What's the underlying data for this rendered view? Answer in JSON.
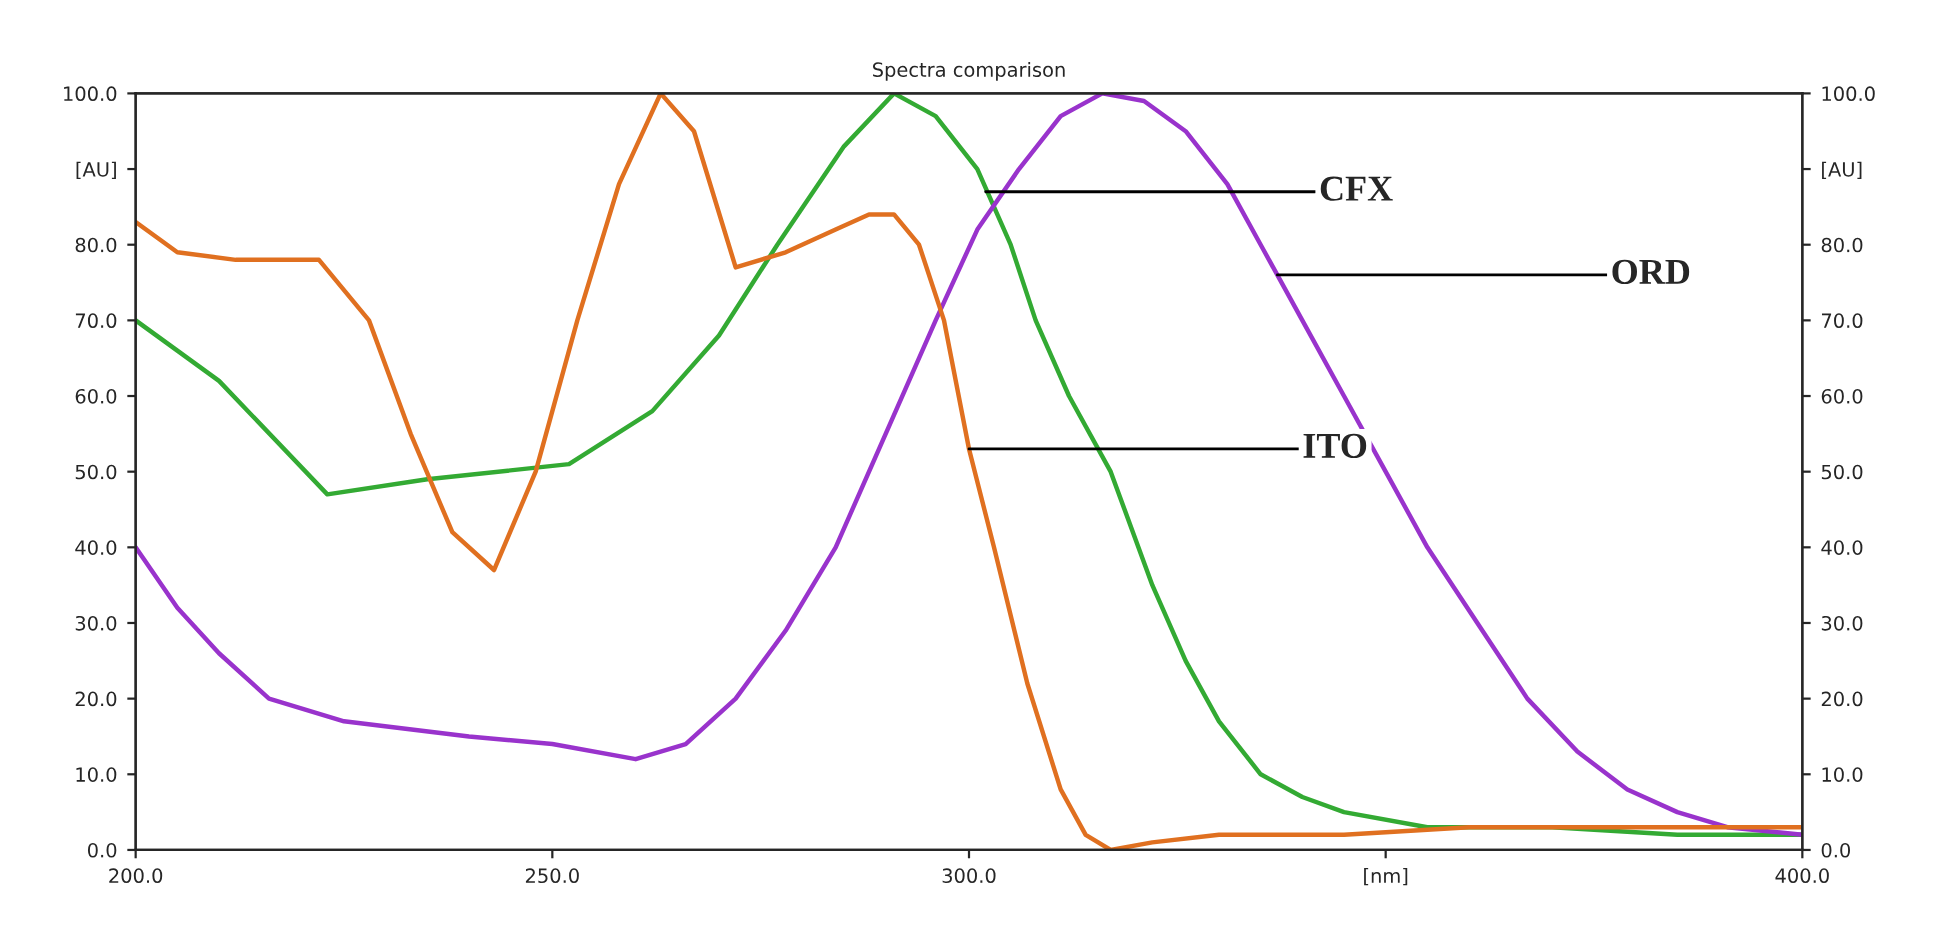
{
  "chart_data": {
    "type": "line",
    "title": "Spectra comparison",
    "xlim": [
      200,
      400
    ],
    "ylim": [
      0,
      100
    ],
    "y2lim": [
      0,
      100
    ],
    "xticks": [
      {
        "value": 200,
        "label": "200.0"
      },
      {
        "value": 250,
        "label": "250.0"
      },
      {
        "value": 300,
        "label": "300.0"
      },
      {
        "value": 350,
        "label": "[nm]"
      },
      {
        "value": 400,
        "label": "400.0"
      }
    ],
    "yticks": [
      {
        "value": 0,
        "label": "0.0"
      },
      {
        "value": 10,
        "label": "10.0"
      },
      {
        "value": 20,
        "label": "20.0"
      },
      {
        "value": 30,
        "label": "30.0"
      },
      {
        "value": 40,
        "label": "40.0"
      },
      {
        "value": 50,
        "label": "50.0"
      },
      {
        "value": 60,
        "label": "60.0"
      },
      {
        "value": 70,
        "label": "70.0"
      },
      {
        "value": 80,
        "label": "80.0"
      },
      {
        "value": 90,
        "label": "[AU]"
      },
      {
        "value": 100,
        "label": "100.0"
      }
    ],
    "y2ticks": [
      {
        "value": 0,
        "label": "0.0"
      },
      {
        "value": 10,
        "label": "10.0"
      },
      {
        "value": 20,
        "label": "20.0"
      },
      {
        "value": 30,
        "label": "30.0"
      },
      {
        "value": 40,
        "label": "40.0"
      },
      {
        "value": 50,
        "label": "50.0"
      },
      {
        "value": 60,
        "label": "60.0"
      },
      {
        "value": 70,
        "label": "70.0"
      },
      {
        "value": 80,
        "label": "80.0"
      },
      {
        "value": 90,
        "label": "[AU]"
      },
      {
        "value": 100,
        "label": "100.0"
      }
    ],
    "grid": false,
    "legend": false,
    "marker": "none",
    "line_style": "solid",
    "series": [
      {
        "color": "#33aa33",
        "x": [
          200,
          210,
          223,
          235,
          252,
          262,
          270,
          277,
          285,
          291,
          296,
          301,
          305,
          308,
          312,
          317,
          322,
          326,
          330,
          335,
          340,
          345,
          355,
          370,
          385,
          400
        ],
        "values": [
          70,
          62,
          47,
          49,
          51,
          58,
          68,
          80,
          93,
          100,
          97,
          90,
          80,
          70,
          60,
          50,
          35,
          25,
          17,
          10,
          7,
          5,
          3,
          3,
          2,
          2
        ]
      },
      {
        "color": "#9933cc",
        "x": [
          200,
          205,
          210,
          216,
          225,
          240,
          250,
          260,
          266,
          272,
          278,
          284,
          290,
          296,
          301,
          306,
          311,
          316,
          321,
          326,
          331,
          335,
          340,
          345,
          350,
          355,
          361,
          367,
          373,
          379,
          385,
          391,
          400
        ],
        "values": [
          40,
          32,
          26,
          20,
          17,
          15,
          14,
          12,
          14,
          20,
          29,
          40,
          55,
          70,
          82,
          90,
          97,
          100,
          99,
          95,
          88,
          80,
          70,
          60,
          50,
          40,
          30,
          20,
          13,
          8,
          5,
          3,
          2
        ]
      },
      {
        "color": "#e07020",
        "x": [
          200,
          205,
          212,
          222,
          228,
          233,
          238,
          243,
          248,
          253,
          258,
          263,
          267,
          272,
          278,
          284,
          288,
          291,
          294,
          297,
          300,
          303,
          307,
          311,
          314,
          317,
          322,
          330,
          345,
          360,
          380,
          400
        ],
        "values": [
          83,
          79,
          78,
          78,
          70,
          55,
          42,
          37,
          50,
          70,
          88,
          100,
          95,
          77,
          79,
          82,
          84,
          84,
          80,
          70,
          53,
          40,
          22,
          8,
          2,
          0,
          1,
          2,
          2,
          3,
          3,
          3
        ]
      }
    ],
    "annotations": [
      {
        "text": "CFX",
        "x": 302,
        "y": 87
      },
      {
        "text": "ORD",
        "x": 337,
        "y": 76
      },
      {
        "text": "ITO",
        "x": 300,
        "y": 53
      }
    ]
  }
}
